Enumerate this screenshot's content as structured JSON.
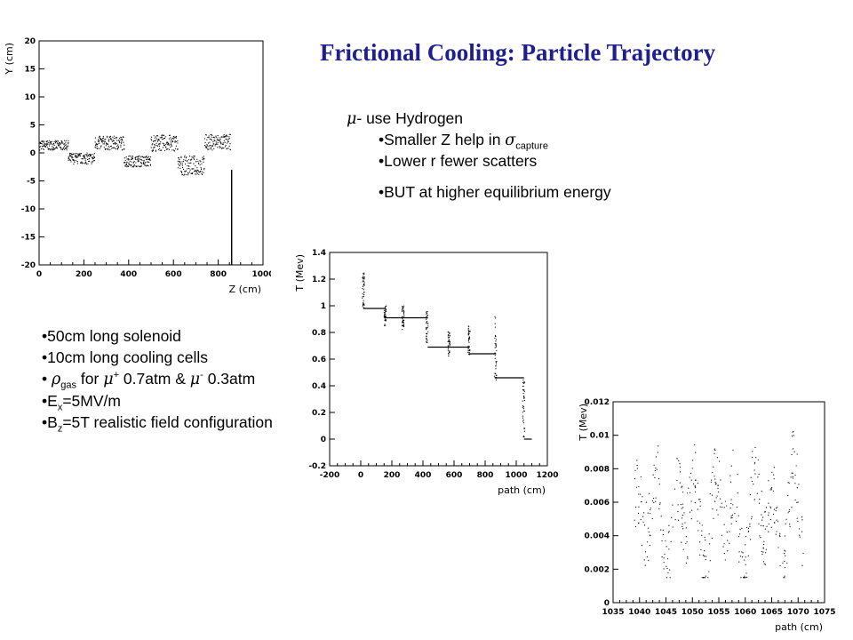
{
  "slide": {
    "title": "Frictional Cooling: Particle Trajectory",
    "muon_minus": "μ",
    "muon_note": "- use Hydrogen",
    "point1_pre": "•Smaller Z help in ",
    "point1_sigma": "σ",
    "point1_sub": "capture",
    "point2": "•Lower r fewer scatters",
    "point3": "•BUT at higher equilibrium energy"
  },
  "params": {
    "b1": "•50cm long solenoid",
    "b2": "•10cm long cooling cells",
    "b3_pre": "• ",
    "b3_rho": "ρ",
    "b3_rho_sub": "gas",
    "b3_mid": " for ",
    "b3_mu1": "μ",
    "b3_mu1_sup": "+",
    "b3_mid2": " 0.7atm & ",
    "b3_mu2": "μ",
    "b3_mu2_sup": "-",
    "b3_end": " 0.3atm",
    "b4_pre": "•E",
    "b4_sub": "x",
    "b4_end": "=5MV/m",
    "b5_pre": "•B",
    "b5_sub": "z",
    "b5_end": "=5T realistic field configuration"
  },
  "chart_data": [
    {
      "type": "scatter",
      "xlabel": "Z (cm)",
      "ylabel": "Y (cm)",
      "xlim": [
        0,
        1000
      ],
      "ylim": [
        -20,
        20
      ],
      "xticks": [
        "0",
        "200",
        "400",
        "600",
        "800",
        "1000"
      ],
      "yticks": [
        "20",
        "15",
        "10",
        "5",
        "0",
        "-5",
        "-10",
        "-15",
        "-20"
      ],
      "segments": [
        {
          "x0": 0,
          "x1": 130,
          "ymin": 0.5,
          "ymax": 2.2
        },
        {
          "x0": 130,
          "x1": 250,
          "ymin": -2.0,
          "ymax": 0.0
        },
        {
          "x0": 250,
          "x1": 380,
          "ymin": 0.5,
          "ymax": 3.0
        },
        {
          "x0": 380,
          "x1": 500,
          "ymin": -2.5,
          "ymax": -0.5
        },
        {
          "x0": 500,
          "x1": 620,
          "ymin": 0.3,
          "ymax": 3.2
        },
        {
          "x0": 620,
          "x1": 740,
          "ymin": -4.0,
          "ymax": -0.5
        },
        {
          "x0": 740,
          "x1": 855,
          "ymin": 0.5,
          "ymax": 3.3
        }
      ],
      "tail_x": 860,
      "tail_ymin": -20,
      "tail_ymax": -3
    },
    {
      "type": "line",
      "xlabel": "path (cm)",
      "ylabel": "T (Mev)",
      "xlim": [
        -200,
        1200
      ],
      "ylim": [
        -0.2,
        1.4
      ],
      "xticks": [
        "-200",
        "0",
        "200",
        "400",
        "600",
        "800",
        "1000",
        "1200"
      ],
      "yticks": [
        "1.4",
        "1.2",
        "1",
        "0.8",
        "0.6",
        "0.4",
        "0.2",
        "0",
        "-0.2"
      ],
      "steps": [
        {
          "x0": 20,
          "x1": 160,
          "y": 0.98
        },
        {
          "x0": 160,
          "x1": 270,
          "y": 0.91
        },
        {
          "x0": 270,
          "x1": 430,
          "y": 0.91
        },
        {
          "x0": 430,
          "x1": 570,
          "y": 0.69
        },
        {
          "x0": 570,
          "x1": 700,
          "y": 0.69
        },
        {
          "x0": 700,
          "x1": 870,
          "y": 0.64
        },
        {
          "x0": 870,
          "x1": 1050,
          "y": 0.46
        },
        {
          "x0": 1050,
          "x1": 1100,
          "y": 0.0
        }
      ],
      "drops": [
        {
          "x": 10,
          "ymin": 0.98,
          "ymax": 1.25
        },
        {
          "x": 150,
          "ymin": 0.85,
          "ymax": 1.0
        },
        {
          "x": 265,
          "ymin": 0.82,
          "ymax": 1.01
        },
        {
          "x": 420,
          "ymin": 0.72,
          "ymax": 0.96
        },
        {
          "x": 560,
          "ymin": 0.62,
          "ymax": 0.81
        },
        {
          "x": 690,
          "ymin": 0.63,
          "ymax": 0.85
        },
        {
          "x": 860,
          "ymin": 0.44,
          "ymax": 0.92
        },
        {
          "x": 1040,
          "ymin": 0.0,
          "ymax": 0.46
        }
      ]
    },
    {
      "type": "scatter",
      "xlabel": "path (cm)",
      "ylabel": "T (Mev)",
      "xlim": [
        1035,
        1075
      ],
      "ylim": [
        0,
        0.012
      ],
      "xticks": [
        "1035",
        "1040",
        "1045",
        "1050",
        "1055",
        "1060",
        "1065",
        "1070",
        "1075"
      ],
      "yticks": [
        "0.012",
        "0.01",
        "0.008",
        "0.006",
        "0.004",
        "0.002",
        "0"
      ],
      "xrange": [
        1039,
        1071
      ],
      "mean": 0.0052,
      "band": [
        0.0015,
        0.0105
      ]
    }
  ]
}
